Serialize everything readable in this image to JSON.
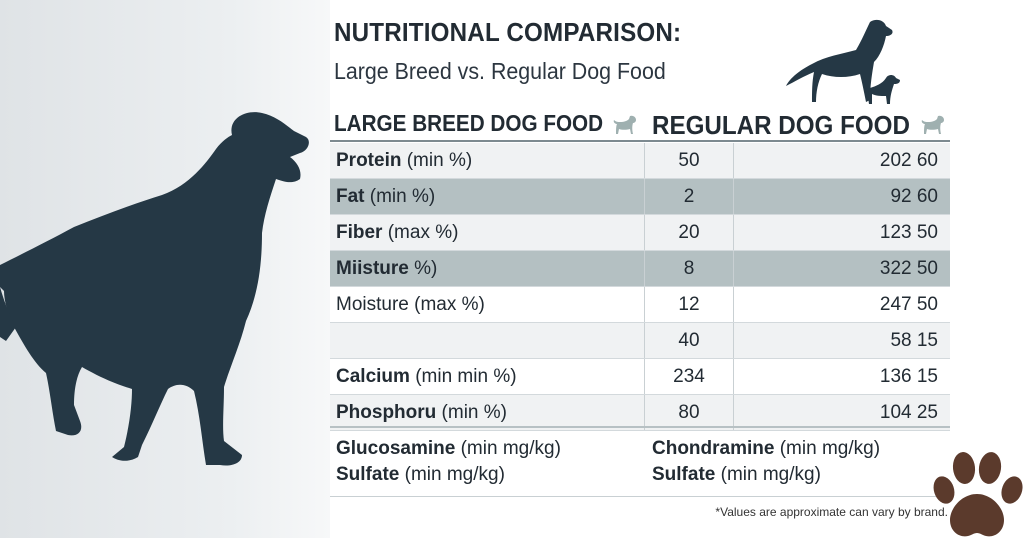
{
  "header": {
    "title": "NUTRITIONAL COMPARISON:",
    "subtitle": "Large Breed vs. Regular Dog Food"
  },
  "columns": {
    "large": "LARGE BREED DOG FOOD",
    "regular": "REGULAR DOG FOOD"
  },
  "rows": [
    {
      "name": "Protein",
      "unit": " (min %)",
      "large": "50",
      "regular": "202 60",
      "style": "light"
    },
    {
      "name": "Fat",
      "unit": " (min %)",
      "large": "2",
      "regular": "92 60",
      "style": "dark"
    },
    {
      "name": "Fiber",
      "unit": " (max %)",
      "large": "20",
      "regular": "123 50",
      "style": "light"
    },
    {
      "name": "Miisture",
      "unit": " %)",
      "large": "8",
      "regular": "322 50",
      "style": "dark"
    },
    {
      "name": "",
      "unit": "Moisture (max %)",
      "large": "12",
      "regular": "247 50",
      "style": "white"
    },
    {
      "name": "",
      "unit": "",
      "large": "40",
      "regular": "58 15",
      "style": "light"
    },
    {
      "name": "Calcium",
      "unit": " (min min %)",
      "large": "234",
      "regular": "136 15",
      "style": "white"
    },
    {
      "name": "Phosphoru",
      "unit": " (min %)",
      "large": "80",
      "regular": "104 25",
      "style": "light"
    }
  ],
  "supplements": {
    "left": [
      {
        "name": "Glucosamine",
        "unit": " (min mg/kg)"
      },
      {
        "name": "Sulfate",
        "unit": " (min mg/kg)"
      }
    ],
    "right": [
      {
        "name": "Chondramine",
        "unit": " (min mg/kg)"
      },
      {
        "name": "Sulfate",
        "unit": " (min mg/kg)"
      }
    ]
  },
  "footnote": "*Values are approximate can vary by brand.",
  "colors": {
    "text": "#222b33",
    "silhouette": "#253845",
    "row_light": "#f0f2f3",
    "row_dark": "#b4c0c2",
    "mini_dog": "#9fb0b0",
    "paw": "#5b3a2c"
  },
  "icons": {
    "big_dog": "dog-silhouette-icon",
    "header_dogs": "dog-and-puppy-icon",
    "mini_dog": "small-dog-icon",
    "paw": "paw-print-icon"
  }
}
